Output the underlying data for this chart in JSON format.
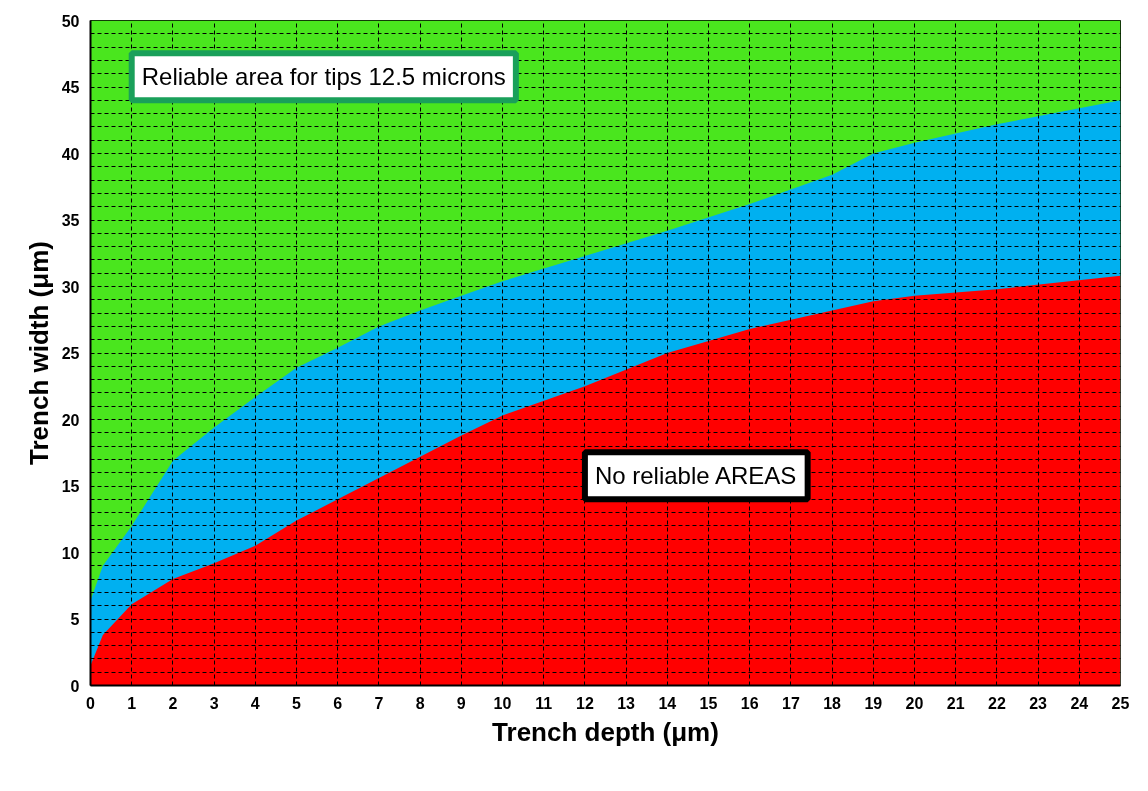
{
  "chart_data": {
    "type": "area",
    "xlabel": "Trench depth (μm)",
    "ylabel": "Trench width (μm)",
    "xlim": [
      0,
      25
    ],
    "ylim": [
      0,
      50
    ],
    "xticks": [
      0,
      1,
      2,
      3,
      4,
      5,
      6,
      7,
      8,
      9,
      10,
      11,
      12,
      13,
      14,
      15,
      16,
      17,
      18,
      19,
      20,
      21,
      22,
      23,
      24,
      25
    ],
    "yticks": [
      0,
      5,
      10,
      15,
      20,
      25,
      30,
      35,
      40,
      45,
      50
    ],
    "grid": true,
    "series": [
      {
        "color": "#4ae61e",
        "x": [
          0,
          25
        ],
        "values": [
          50,
          50
        ]
      },
      {
        "color": "#00b0f0",
        "x": [
          0,
          0.3,
          1,
          2,
          3,
          4,
          5,
          6,
          7,
          8,
          9,
          10,
          12,
          14,
          16,
          18,
          19,
          20,
          22,
          25
        ],
        "values": [
          6.4,
          9,
          12,
          16.9,
          19.4,
          21.7,
          23.9,
          25.4,
          27,
          28.2,
          29.3,
          30.4,
          32.3,
          34.2,
          36.2,
          38.4,
          40.0,
          40.8,
          42.2,
          44
        ]
      },
      {
        "color": "#ff0000",
        "x": [
          0,
          0.3,
          1,
          2,
          3,
          4,
          5,
          6,
          7,
          8,
          9,
          10,
          12,
          14,
          16,
          18,
          19,
          20,
          22,
          25
        ],
        "values": [
          1.5,
          3.8,
          6.1,
          8.0,
          9.2,
          10.5,
          12.4,
          14,
          15.6,
          17.2,
          18.8,
          20.3,
          22.5,
          25.0,
          26.8,
          28.2,
          28.9,
          29.3,
          29.8,
          30.8
        ]
      }
    ],
    "annotations": [
      "Reliable area for tips 12.5 microns",
      "No reliable AREAS"
    ]
  }
}
